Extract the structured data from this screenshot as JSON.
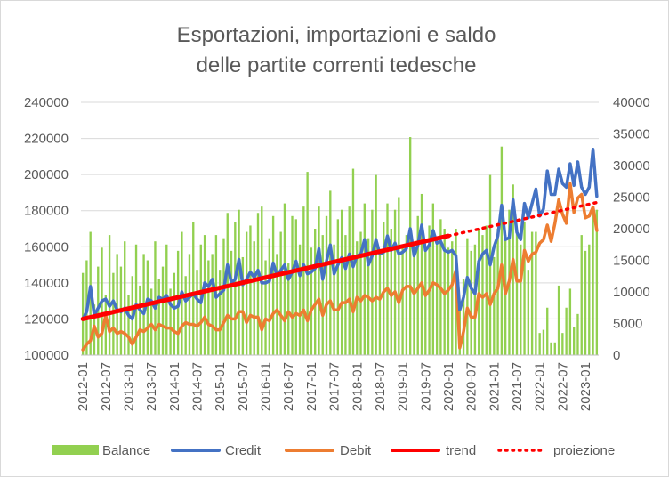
{
  "chart_data": {
    "type": "line",
    "title_lines": [
      "Esportazioni, importazioni e saldo",
      "delle partite correnti tedesche"
    ],
    "x_tick_labels": [
      "2012-01",
      "2012-07",
      "2013-01",
      "2013-07",
      "2014-01",
      "2014-07",
      "2015-01",
      "2015-07",
      "2016-01",
      "2016-07",
      "2017-01",
      "2017-07",
      "2018-01",
      "2018-07",
      "2019-01",
      "2019-07",
      "2020-01",
      "2020-07",
      "2021-01",
      "2021-07",
      "2022-01",
      "2022-07",
      "2023-01"
    ],
    "x_start": "2012-01",
    "x_end": "2023-04",
    "y_left": {
      "min": 100000,
      "max": 240000,
      "step": 20000,
      "ticks": [
        "240000",
        "220000",
        "200000",
        "180000",
        "160000",
        "140000",
        "120000",
        "100000"
      ]
    },
    "y_right": {
      "min": 0,
      "max": 40000,
      "step": 5000,
      "ticks": [
        "40000",
        "35000",
        "30000",
        "25000",
        "20000",
        "15000",
        "10000",
        "5000",
        "0"
      ]
    },
    "colors": {
      "balance": "#92d050",
      "credit": "#4472c4",
      "debit": "#ed7d31",
      "trend": "#ff0000",
      "proiezione": "#ff0000"
    },
    "series": [
      {
        "name": "Balance",
        "type": "bar",
        "axis": "right",
        "values": [
          13000,
          15000,
          19500,
          8000,
          14000,
          17000,
          9500,
          19000,
          13000,
          16000,
          14000,
          18000,
          9500,
          12500,
          17500,
          11000,
          16000,
          15000,
          10500,
          18000,
          12000,
          14000,
          17500,
          10500,
          13000,
          16500,
          19500,
          12500,
          16000,
          21000,
          13500,
          17500,
          19000,
          15000,
          16000,
          19000,
          13500,
          18500,
          22500,
          16500,
          21000,
          23000,
          15500,
          19500,
          20500,
          18000,
          22500,
          23500,
          15000,
          18500,
          22000,
          16000,
          19500,
          24000,
          14500,
          22000,
          21500,
          17500,
          23500,
          29000,
          17000,
          20000,
          23500,
          19000,
          22000,
          26000,
          17500,
          21500,
          23000,
          19000,
          23500,
          29500,
          18000,
          19500,
          24000,
          18500,
          23000,
          28500,
          16500,
          21000,
          24000,
          20000,
          23000,
          25000,
          17000,
          19000,
          34500,
          17500,
          22000,
          25500,
          16500,
          20500,
          24000,
          18000,
          21500,
          20000,
          17000,
          18000,
          20000,
          8000,
          12000,
          18500,
          16500,
          17500,
          20000,
          19000,
          20500,
          28500,
          15500,
          20000,
          33000,
          19000,
          23000,
          27000,
          19500,
          17500,
          21000,
          13500,
          19500,
          19500,
          3500,
          4000,
          7500,
          2000,
          2000,
          11000,
          3500,
          7500,
          10500,
          4500,
          6500,
          19000,
          16500,
          17500,
          22500,
          23000
        ]
      },
      {
        "name": "Credit",
        "type": "line",
        "axis": "left",
        "values": [
          120000,
          124000,
          138000,
          122000,
          126000,
          130000,
          131000,
          127000,
          130000,
          125000,
          124000,
          126000,
          122000,
          120000,
          128000,
          125000,
          123000,
          131000,
          130000,
          126000,
          132000,
          131000,
          133000,
          128000,
          126000,
          127000,
          135000,
          130000,
          132000,
          134000,
          131000,
          129000,
          140000,
          138000,
          142000,
          132000,
          134000,
          136000,
          150000,
          140000,
          142000,
          153000,
          139000,
          142000,
          146000,
          143000,
          147000,
          140000,
          140000,
          141000,
          151000,
          144000,
          147000,
          150000,
          142000,
          146000,
          152000,
          144000,
          150000,
          145000,
          146000,
          148000,
          159000,
          142000,
          152000,
          161000,
          145000,
          150000,
          154000,
          148000,
          156000,
          149000,
          155000,
          156000,
          164000,
          150000,
          155000,
          164000,
          156000,
          157000,
          166000,
          158000,
          162000,
          156000,
          157000,
          159000,
          170000,
          155000,
          161000,
          172000,
          158000,
          161000,
          169000,
          162000,
          163000,
          158000,
          157000,
          158000,
          155000,
          125000,
          132000,
          143000,
          137000,
          134000,
          152000,
          156000,
          158000,
          150000,
          160000,
          166000,
          183000,
          164000,
          165000,
          186000,
          168000,
          164000,
          184000,
          176000,
          184000,
          192000,
          177000,
          181000,
          202000,
          189000,
          189000,
          203000,
          195000,
          193000,
          206000,
          194000,
          207000,
          193000,
          189000,
          193000,
          214000,
          188000
        ]
      },
      {
        "name": "Debit",
        "type": "line",
        "axis": "left",
        "values": [
          103000,
          106000,
          108000,
          116000,
          110000,
          112000,
          122000,
          113000,
          115000,
          112000,
          113000,
          112000,
          110000,
          106000,
          110000,
          114000,
          113000,
          115000,
          117000,
          114000,
          117000,
          116000,
          115000,
          115000,
          113000,
          112000,
          116000,
          118000,
          117000,
          117000,
          116000,
          118000,
          121000,
          117000,
          116000,
          114000,
          114000,
          118000,
          122000,
          120000,
          120000,
          124000,
          124000,
          118000,
          122000,
          121000,
          121000,
          114000,
          120000,
          119000,
          123000,
          125000,
          122000,
          119000,
          124000,
          121000,
          123000,
          122000,
          125000,
          119000,
          125000,
          128000,
          131000,
          122000,
          128000,
          130000,
          125000,
          125000,
          129000,
          129000,
          131000,
          124000,
          132000,
          130000,
          133000,
          132000,
          130000,
          132000,
          131000,
          135000,
          137000,
          133000,
          135000,
          129000,
          136000,
          138000,
          138000,
          134000,
          137000,
          140000,
          133000,
          136000,
          140000,
          139000,
          137000,
          134000,
          136000,
          139000,
          147000,
          104000,
          113000,
          126000,
          121000,
          121000,
          134000,
          132000,
          134000,
          128000,
          134000,
          137000,
          150000,
          134000,
          141000,
          153000,
          141000,
          141000,
          158000,
          152000,
          156000,
          157000,
          162000,
          164000,
          172000,
          163000,
          173000,
          186000,
          178000,
          173000,
          195000,
          179000,
          187000,
          189000,
          176000,
          177000,
          182000,
          169000
        ]
      },
      {
        "name": "trend",
        "type": "line",
        "axis": "left",
        "from": "2012-01",
        "to": "2020-01",
        "values": [
          120000,
          166000
        ]
      },
      {
        "name": "proiezione",
        "type": "line",
        "axis": "left",
        "style": "dotted",
        "from": "2020-01",
        "to": "2023-04",
        "values": [
          166000,
          184500
        ]
      }
    ],
    "legend": {
      "placement": "bottom",
      "labels": [
        "Balance",
        "Credit",
        "Debit",
        "trend",
        "proiezione"
      ]
    },
    "grid": {
      "horizontal": true,
      "vertical": false
    }
  }
}
